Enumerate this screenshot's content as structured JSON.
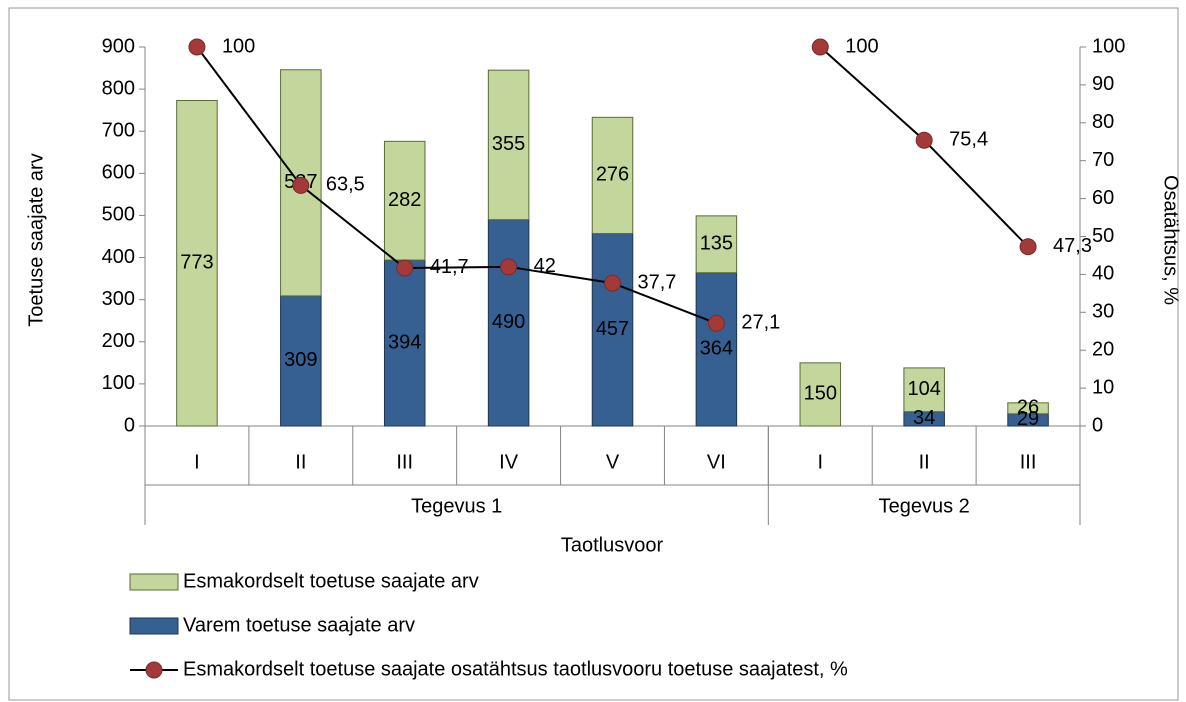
{
  "chart_data": {
    "type": "bar",
    "category_groups": [
      {
        "name": "Tegevus 1",
        "categories": [
          "I",
          "II",
          "III",
          "IV",
          "V",
          "VI"
        ]
      },
      {
        "name": "Tegevus 2",
        "categories": [
          "I",
          "II",
          "III"
        ]
      }
    ],
    "series": [
      {
        "name": "Esmakordselt toetuse saajate arv",
        "type": "bar",
        "color": "#c3d69b",
        "stroke": "#5a6b3a",
        "values": [
          773,
          537,
          282,
          355,
          276,
          135,
          150,
          104,
          26
        ]
      },
      {
        "name": "Varem toetuse saajate arv",
        "type": "bar",
        "color": "#376092",
        "stroke": "#1f3550",
        "values": [
          null,
          309,
          394,
          490,
          457,
          364,
          null,
          34,
          29
        ]
      },
      {
        "name": "Esmakordselt toetuse saajate osatähtsus taotlusvooru toetuse saajatest, %",
        "type": "line",
        "axis": "y2",
        "color": "#000000",
        "marker_color": "#a33a3a",
        "values": [
          100,
          63.5,
          41.7,
          42,
          37.7,
          27.1,
          100,
          75.4,
          47.3
        ],
        "value_labels": [
          "100",
          "63,5",
          "41,7",
          "42",
          "37,7",
          "27,1",
          "100",
          "75,4",
          "47,3"
        ]
      }
    ],
    "ylabel": "Toetuse saajate arv",
    "y2label": "Osatähtsus, %",
    "xlabel": "Taotlusvoor",
    "ylim": [
      0,
      900
    ],
    "yticks": [
      0,
      100,
      200,
      300,
      400,
      500,
      600,
      700,
      800,
      900
    ],
    "y2lim": [
      0,
      100
    ],
    "y2ticks": [
      0,
      10,
      20,
      30,
      40,
      50,
      60,
      70,
      80,
      90,
      100
    ],
    "grid": false,
    "legend": "bottom"
  }
}
